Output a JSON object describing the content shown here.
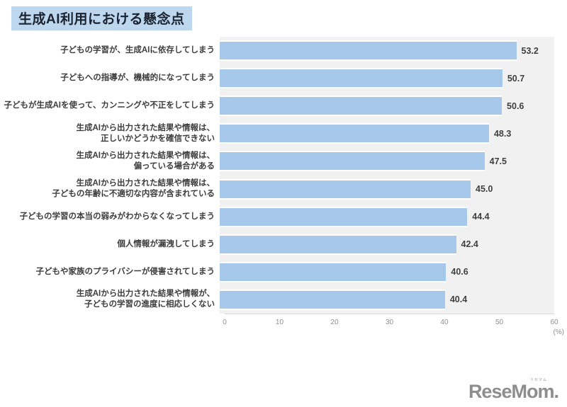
{
  "title": "生成AI利用における懸念点",
  "chart_data": {
    "type": "bar",
    "orientation": "horizontal",
    "title": "生成AI利用における懸念点",
    "categories": [
      [
        "子どもの学習が、生成AIに依存してしまう"
      ],
      [
        "子どもへの指導が、機械的になってしまう"
      ],
      [
        "子どもが生成AIを使って、カンニングや不正をしてしまう"
      ],
      [
        "生成AIから出力された結果や情報は、",
        "正しいかどうかを確信できない"
      ],
      [
        "生成AIから出力された結果や情報は、",
        "偏っている場合がある"
      ],
      [
        "生成AIから出力された結果や情報は、",
        "子どもの年齢に不適切な内容が含まれている"
      ],
      [
        "子どもの学習の本当の弱みがわからなくなってしまう"
      ],
      [
        "個人情報が漏洩してしまう"
      ],
      [
        "子どもや家族のプライバシーが侵害されてしまう"
      ],
      [
        "生成AIから出力された結果や情報が、",
        "子どもの学習の進度に相応しくない"
      ]
    ],
    "values": [
      53.2,
      50.7,
      50.6,
      48.3,
      47.5,
      45.0,
      44.4,
      42.4,
      40.6,
      40.4
    ],
    "xlim": [
      0,
      60
    ],
    "ticks": [
      0,
      10,
      20,
      30,
      40,
      50,
      60
    ],
    "unit_label": "(%)",
    "grid": false,
    "legend": "none",
    "bar_color": "#A6C9EB",
    "plot_bg": "#F1F1F2",
    "title_bg": "#BDD7EE"
  },
  "logo": {
    "text": "ReseMom",
    "suffix": ".",
    "ruby": "リセマム"
  }
}
